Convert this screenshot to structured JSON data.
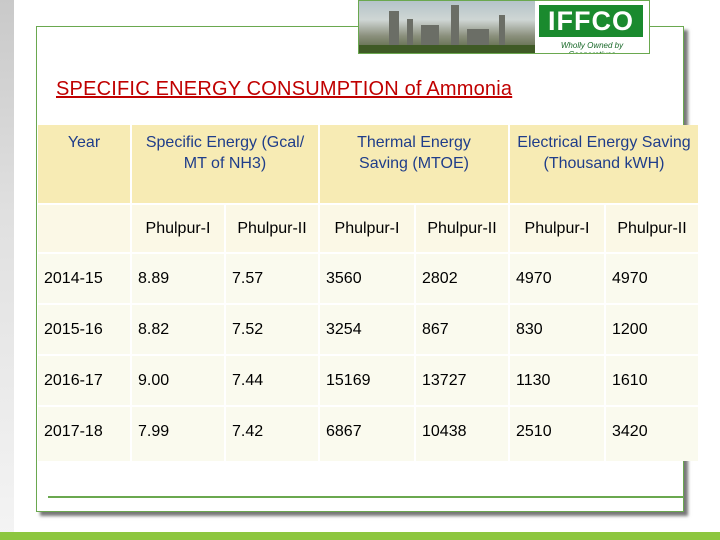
{
  "logo": {
    "brand": "IFFCO",
    "tagline": "Wholly Owned by Cooperatives"
  },
  "title": "SPECIFIC ENERGY CONSUMPTION of Ammonia",
  "table": {
    "headers": {
      "year": "Year",
      "specific": "Specific Energy (Gcal/ MT of NH3)",
      "thermal": "Thermal Energy Saving (MTOE)",
      "electrical": "Electrical Energy Saving (Thousand kWH)"
    },
    "subheaders": [
      "Phulpur-I",
      "Phulpur-II",
      "Phulpur-I",
      "Phulpur-II",
      "Phulpur-I",
      "Phulpur-II"
    ],
    "rows": [
      [
        "2014-15",
        "8.89",
        "7.57",
        "3560",
        "2802",
        "4970",
        "4970"
      ],
      [
        "2015-16",
        "8.82",
        "7.52",
        "3254",
        "867",
        "830",
        "1200"
      ],
      [
        "2016-17",
        "9.00",
        "7.44",
        "15169",
        "13727",
        "1130",
        "1610"
      ],
      [
        "2017-18",
        "7.99",
        "7.42",
        "6867",
        "10438",
        "2510",
        "3420"
      ]
    ]
  },
  "colors": {
    "title": "#c00000",
    "header_bg": "#f7ebb4",
    "header_text": "#1f3d8a",
    "row_bg": "#fafaee",
    "brand_green": "#1a8a2e"
  }
}
